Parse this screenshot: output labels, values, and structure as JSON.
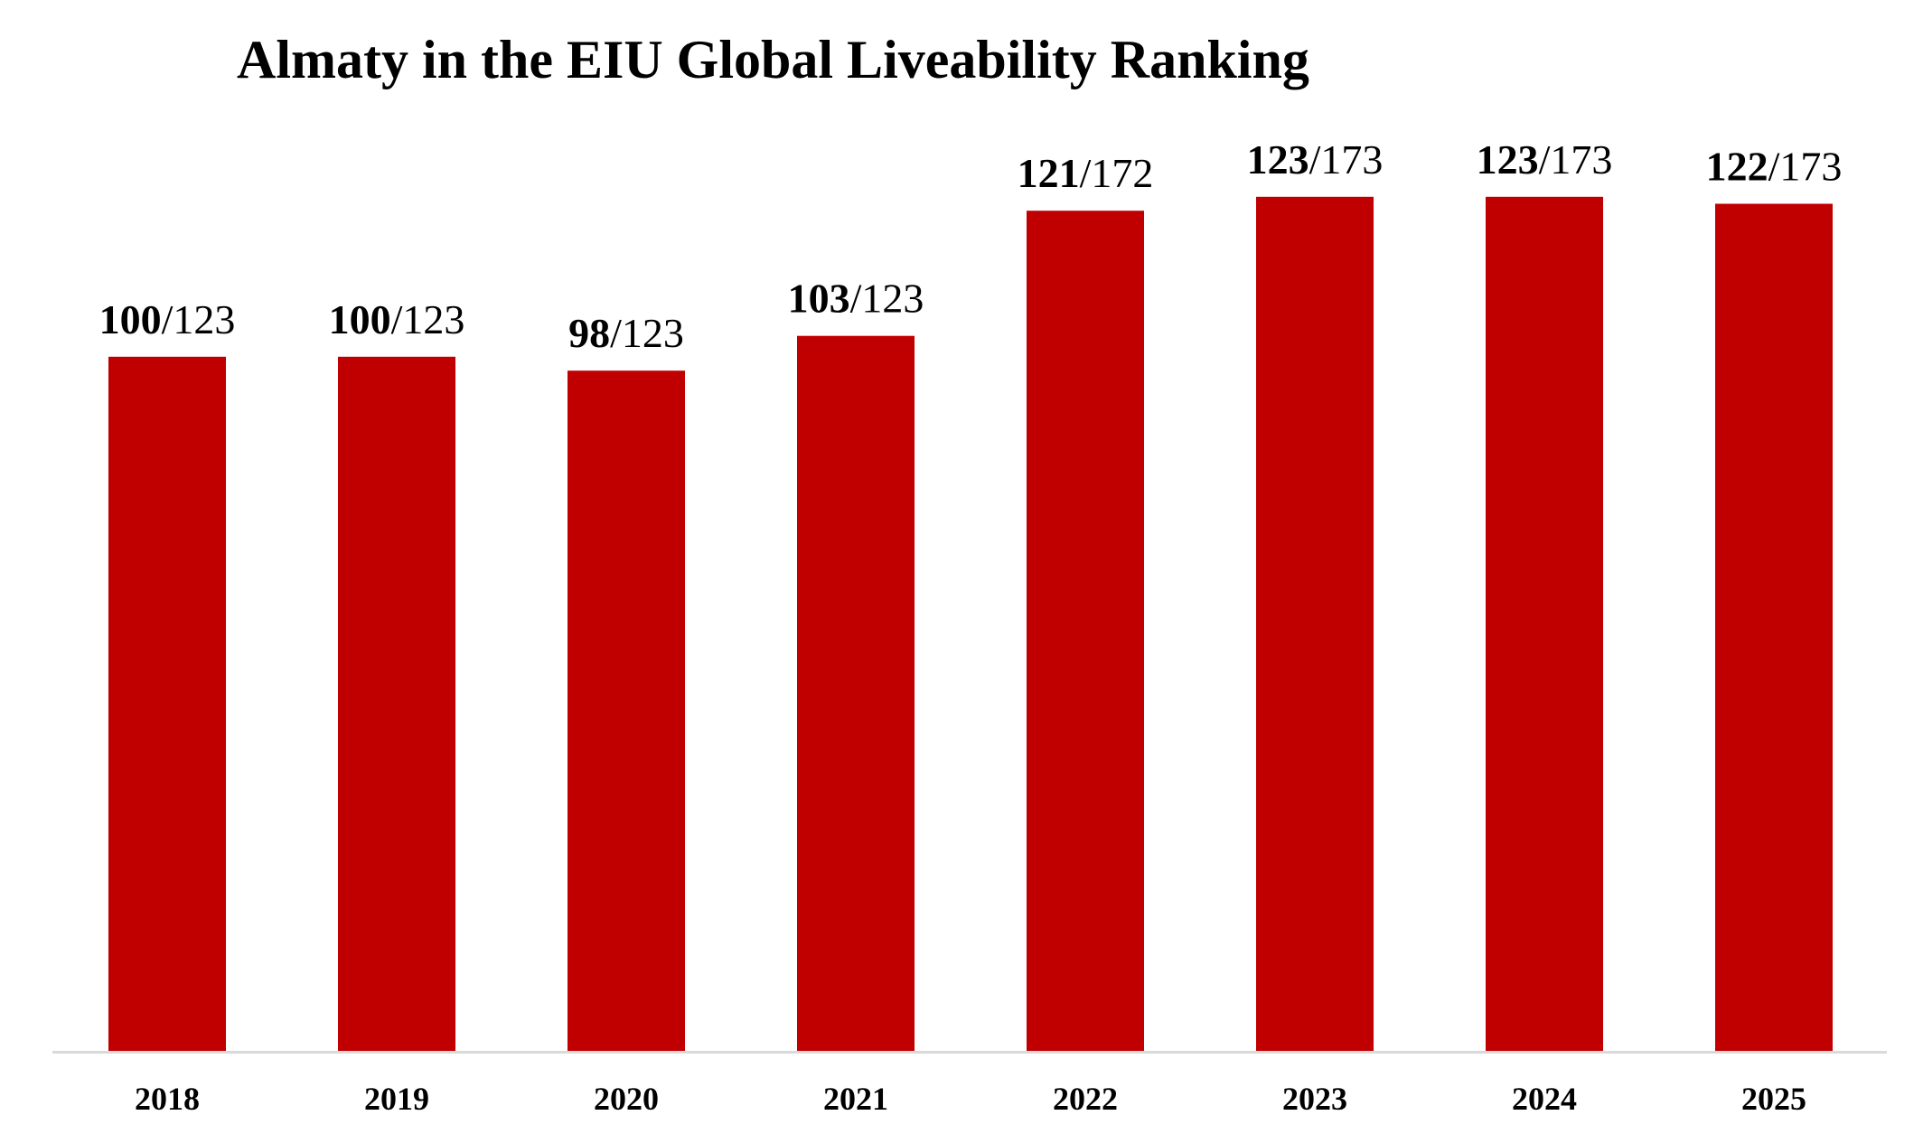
{
  "chart_data": {
    "type": "bar",
    "title": "Almaty in the EIU Global Liveability Ranking",
    "xlabel": "",
    "ylabel": "",
    "categories": [
      "2018",
      "2019",
      "2020",
      "2021",
      "2022",
      "2023",
      "2024",
      "2025"
    ],
    "values": [
      100,
      100,
      98,
      103,
      121,
      123,
      123,
      122
    ],
    "totals": [
      123,
      123,
      123,
      123,
      172,
      173,
      173,
      173
    ],
    "data_labels": [
      {
        "rank": "100",
        "total": "/123"
      },
      {
        "rank": "100",
        "total": "/123"
      },
      {
        "rank": "98",
        "total": "/123"
      },
      {
        "rank": "103",
        "total": "/123"
      },
      {
        "rank": "121",
        "total": "/172"
      },
      {
        "rank": "123",
        "total": "/173"
      },
      {
        "rank": "123",
        "total": "/173"
      },
      {
        "rank": "122",
        "total": "/173"
      }
    ],
    "ylim": [
      0,
      130
    ],
    "grid": false,
    "legend": "none",
    "bar_color": "#c00000",
    "axis_color": "#d9d9d9"
  }
}
